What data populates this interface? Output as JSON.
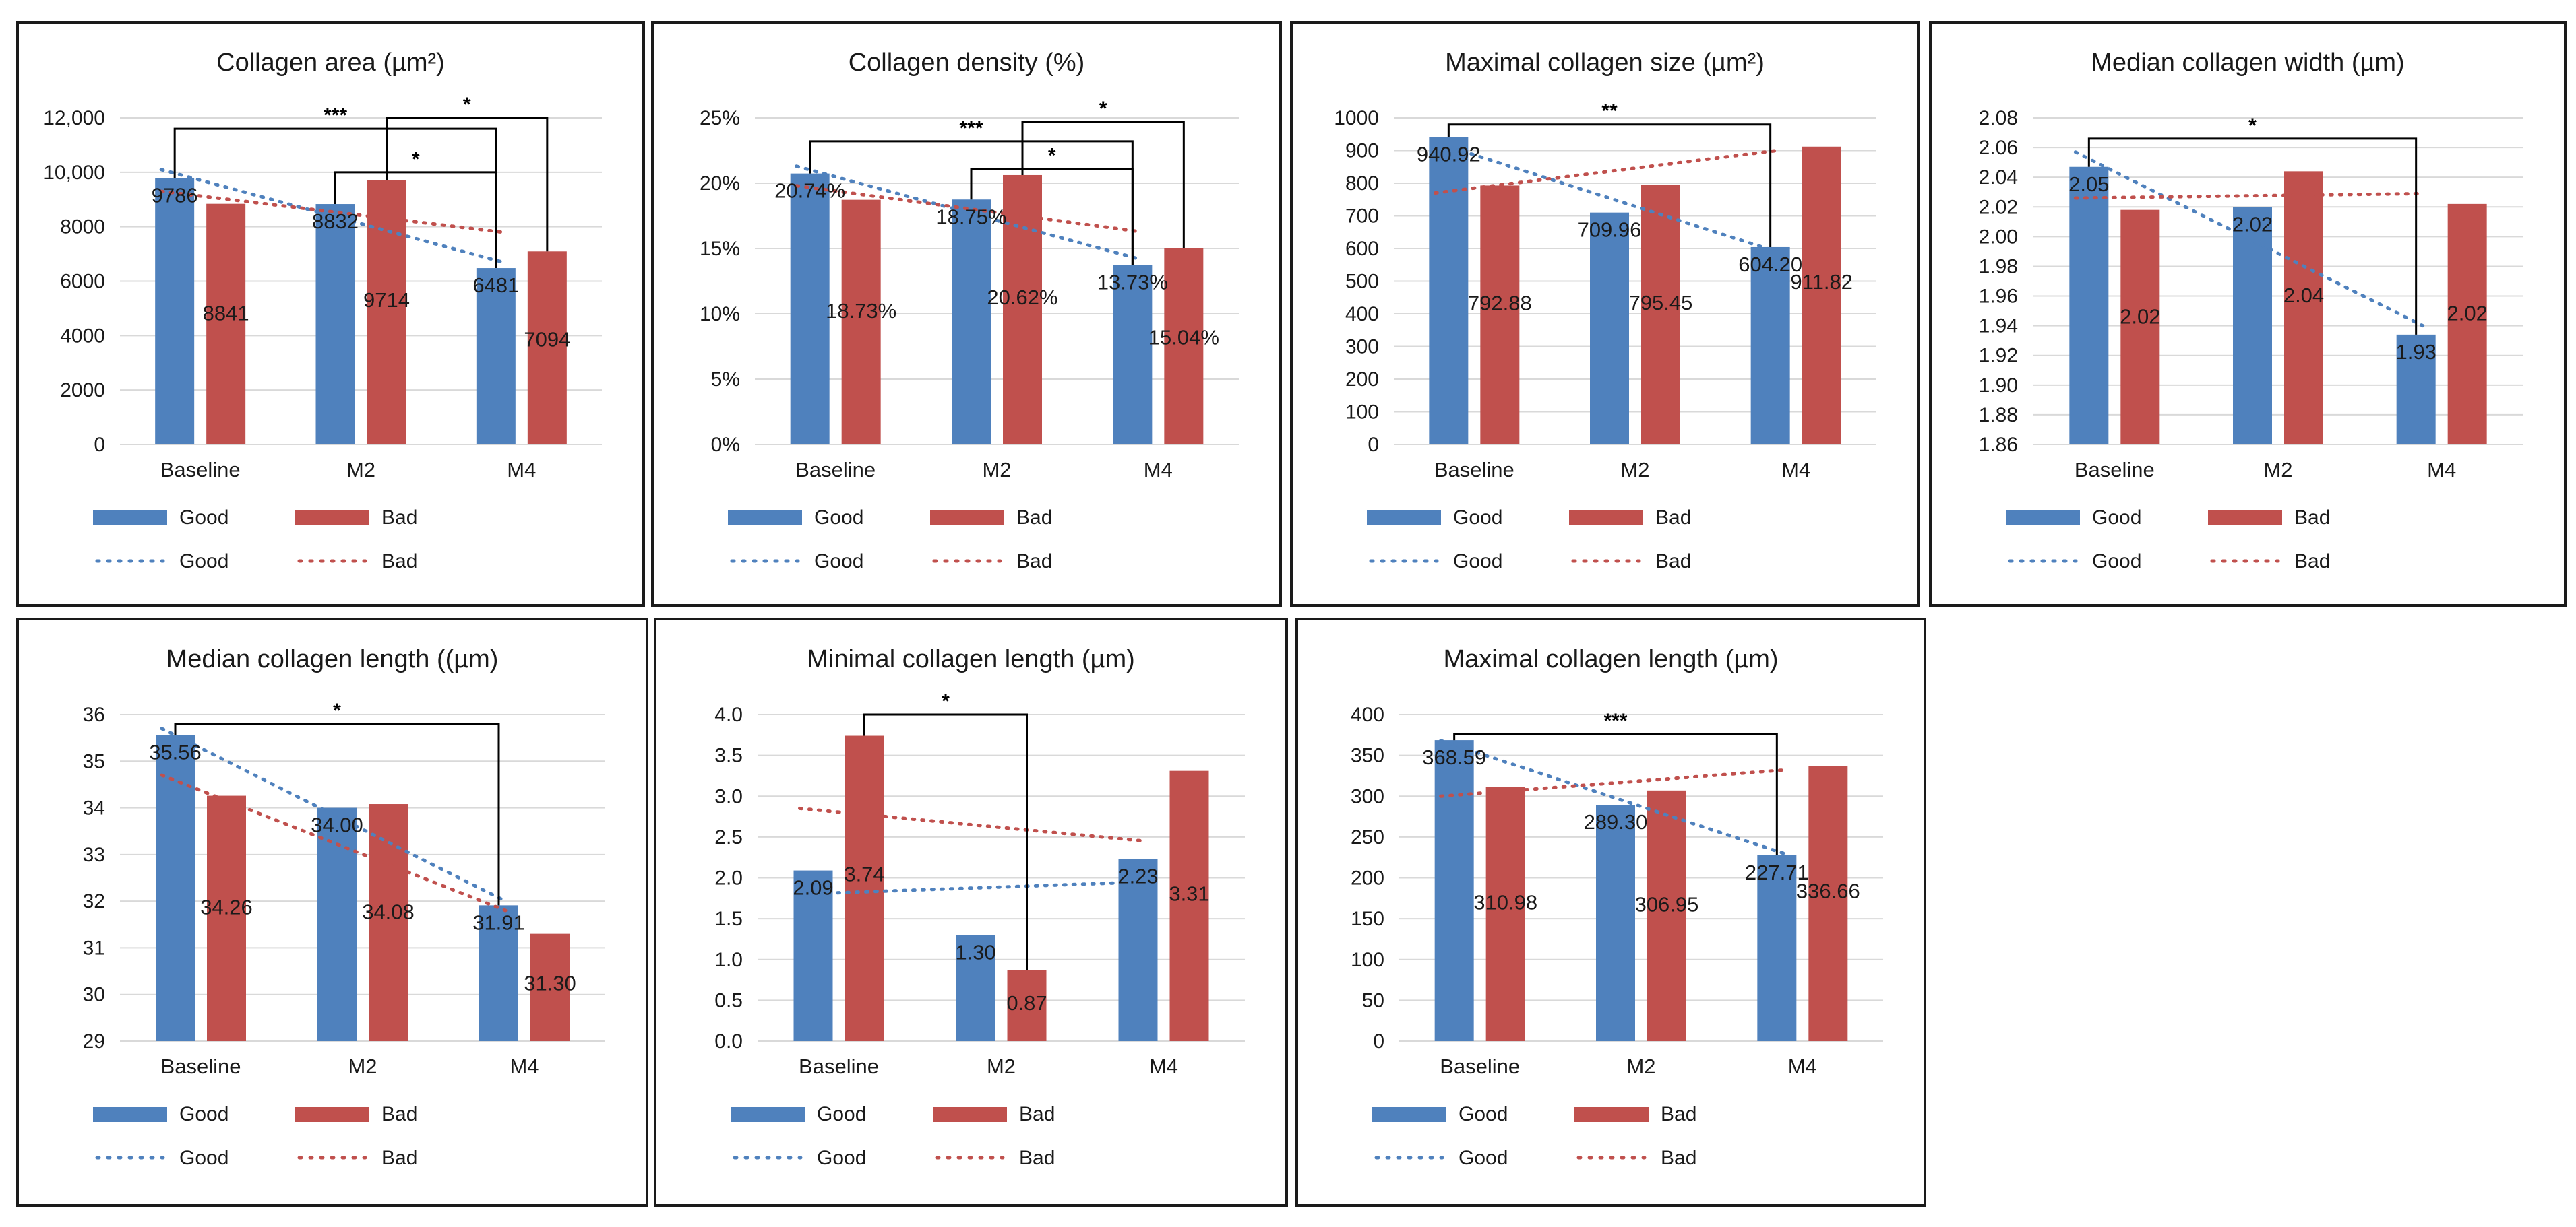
{
  "colors": {
    "good": "#4F81BD",
    "bad": "#C0504D"
  },
  "legend": {
    "good": "Good",
    "bad": "Bad"
  },
  "chart_data": [
    {
      "type": "bar",
      "title": "Collagen area (µm²)",
      "categories": [
        "Baseline",
        "M2",
        "M4"
      ],
      "series": [
        {
          "name": "Good",
          "values": [
            9786,
            8832,
            6481
          ]
        },
        {
          "name": "Bad",
          "values": [
            8841,
            9714,
            7094
          ]
        }
      ],
      "labels": [
        [
          "9786",
          "8832",
          "6481"
        ],
        [
          "8841",
          "9714",
          "7094"
        ]
      ],
      "ylim": [
        0,
        12000
      ],
      "yticks": [
        "0",
        "2000",
        "4000",
        "6000",
        "8000",
        "10,000",
        "12,000"
      ],
      "legend": [
        "Good",
        "Bad",
        "Good",
        "Bad"
      ],
      "trendlines": [
        {
          "name": "Good",
          "from": 10100,
          "to": 6700
        },
        {
          "name": "Bad",
          "from": 9300,
          "to": 7800
        }
      ],
      "significance": [
        {
          "from": [
            0,
            0
          ],
          "to": [
            2,
            0
          ],
          "label": "***",
          "at": 11600
        },
        {
          "from": [
            1,
            0
          ],
          "to": [
            2,
            0
          ],
          "label": "*",
          "at": 10000
        },
        {
          "from": [
            1,
            1
          ],
          "to": [
            2,
            1
          ],
          "label": "*",
          "at": 12000
        }
      ]
    },
    {
      "type": "bar",
      "title": "Collagen density (%)",
      "categories": [
        "Baseline",
        "M2",
        "M4"
      ],
      "series": [
        {
          "name": "Good",
          "values": [
            20.74,
            18.75,
            13.73
          ]
        },
        {
          "name": "Bad",
          "values": [
            18.73,
            20.62,
            15.04
          ]
        }
      ],
      "labels": [
        [
          "20.74%",
          "18.75%",
          "13.73%"
        ],
        [
          "18.73%",
          "20.62%",
          "15.04%"
        ]
      ],
      "ylim": [
        0,
        25
      ],
      "yticks": [
        "0%",
        "5%",
        "10%",
        "15%",
        "20%",
        "25%"
      ],
      "legend": [
        "Good",
        "Bad",
        "Good",
        "Bad"
      ],
      "trendlines": [
        {
          "name": "Good",
          "from": 21.3,
          "to": 14.2
        },
        {
          "name": "Bad",
          "from": 19.8,
          "to": 16.3
        }
      ],
      "significance": [
        {
          "from": [
            0,
            0
          ],
          "to": [
            2,
            0
          ],
          "label": "***",
          "at": 23.2
        },
        {
          "from": [
            1,
            0
          ],
          "to": [
            2,
            0
          ],
          "label": "*",
          "at": 21.1
        },
        {
          "from": [
            1,
            1
          ],
          "to": [
            2,
            1
          ],
          "label": "*",
          "at": 24.7
        }
      ]
    },
    {
      "type": "bar",
      "title": "Maximal collagen size (µm²)",
      "categories": [
        "Baseline",
        "M2",
        "M4"
      ],
      "series": [
        {
          "name": "Good",
          "values": [
            940.92,
            709.96,
            604.2
          ]
        },
        {
          "name": "Bad",
          "values": [
            792.88,
            795.45,
            911.82
          ]
        }
      ],
      "labels": [
        [
          "940.92",
          "709.96",
          "604.20"
        ],
        [
          "792.88",
          "795.45",
          "911.82"
        ]
      ],
      "ylim": [
        0,
        1000
      ],
      "yticks": [
        "0",
        "100",
        "200",
        "300",
        "400",
        "500",
        "600",
        "700",
        "800",
        "900",
        "1000"
      ],
      "legend": [
        "Good",
        "Bad",
        "Good",
        "Bad"
      ],
      "trendlines": [
        {
          "name": "Good",
          "from": 925,
          "to": 590
        },
        {
          "name": "Bad",
          "from": 770,
          "to": 900
        }
      ],
      "significance": [
        {
          "from": [
            0,
            0
          ],
          "to": [
            2,
            0
          ],
          "label": "**",
          "at": 980
        }
      ]
    },
    {
      "type": "bar",
      "title": "Median collagen width (µm)",
      "categories": [
        "Baseline",
        "M2",
        "M4"
      ],
      "series": [
        {
          "name": "Good",
          "values": [
            2.047,
            2.02,
            1.934
          ]
        },
        {
          "name": "Bad",
          "values": [
            2.018,
            2.044,
            2.022
          ]
        }
      ],
      "labels": [
        [
          "2.05",
          "2.02",
          "1.93"
        ],
        [
          "2.02",
          "2.04",
          "2.02"
        ]
      ],
      "ylim": [
        1.86,
        2.08
      ],
      "yticks": [
        "1.86",
        "1.88",
        "1.90",
        "1.92",
        "1.94",
        "1.96",
        "1.98",
        "2.00",
        "2.02",
        "2.04",
        "2.06",
        "2.08"
      ],
      "legend": [
        "Good",
        "Bad",
        "Good",
        "Bad"
      ],
      "trendlines": [
        {
          "name": "Good",
          "from": 2.057,
          "to": 1.94
        },
        {
          "name": "Bad",
          "from": 2.026,
          "to": 2.029
        }
      ],
      "significance": [
        {
          "from": [
            0,
            0
          ],
          "to": [
            2,
            0
          ],
          "label": "*",
          "at": 2.066
        }
      ]
    },
    {
      "type": "bar",
      "title": "Median collagen length ((µm)",
      "categories": [
        "Baseline",
        "M2",
        "M4"
      ],
      "series": [
        {
          "name": "Good",
          "values": [
            35.56,
            34.0,
            31.91
          ]
        },
        {
          "name": "Bad",
          "values": [
            34.26,
            34.08,
            31.3
          ]
        }
      ],
      "labels": [
        [
          "35.56",
          "34.00",
          "31.91"
        ],
        [
          "34.26",
          "34.08",
          "31.30"
        ]
      ],
      "ylim": [
        29,
        36
      ],
      "yticks": [
        "29",
        "30",
        "31",
        "32",
        "33",
        "34",
        "35",
        "36"
      ],
      "legend": [
        "Good",
        "Bad",
        "Good",
        "Bad"
      ],
      "trendlines": [
        {
          "name": "Good",
          "from": 35.7,
          "to": 32.0
        },
        {
          "name": "Bad",
          "from": 34.7,
          "to": 31.8
        }
      ],
      "significance": [
        {
          "from": [
            0,
            0
          ],
          "to": [
            2,
            0
          ],
          "label": "*",
          "at": 35.8
        }
      ]
    },
    {
      "type": "bar",
      "title": "Minimal collagen length (µm)",
      "categories": [
        "Baseline",
        "M2",
        "M4"
      ],
      "series": [
        {
          "name": "Good",
          "values": [
            2.09,
            1.3,
            2.23
          ]
        },
        {
          "name": "Bad",
          "values": [
            3.74,
            0.87,
            3.31
          ]
        }
      ],
      "labels": [
        [
          "2.09",
          "1.30",
          "2.23"
        ],
        [
          "3.74",
          "0.87",
          "3.31"
        ]
      ],
      "ylim": [
        0,
        4
      ],
      "yticks": [
        "0.0",
        "0.5",
        "1.0",
        "1.5",
        "2.0",
        "2.5",
        "3.0",
        "3.5",
        "4.0"
      ],
      "legend": [
        "Good",
        "Bad",
        "Good",
        "Bad"
      ],
      "trendlines": [
        {
          "name": "Good",
          "from": 1.8,
          "to": 1.95
        },
        {
          "name": "Bad",
          "from": 2.85,
          "to": 2.45
        }
      ],
      "significance": [
        {
          "from": [
            0,
            1
          ],
          "to": [
            1,
            1
          ],
          "label": "*",
          "at": 4.0
        }
      ]
    },
    {
      "type": "bar",
      "title": "Maximal collagen length (µm)",
      "categories": [
        "Baseline",
        "M2",
        "M4"
      ],
      "series": [
        {
          "name": "Good",
          "values": [
            368.59,
            289.3,
            227.71
          ]
        },
        {
          "name": "Bad",
          "values": [
            310.98,
            306.95,
            336.66
          ]
        }
      ],
      "labels": [
        [
          "368.59",
          "289.30",
          "227.71"
        ],
        [
          "310.98",
          "306.95",
          "336.66"
        ]
      ],
      "ylim": [
        0,
        400
      ],
      "yticks": [
        "0",
        "50",
        "100",
        "150",
        "200",
        "250",
        "300",
        "350",
        "400"
      ],
      "legend": [
        "Good",
        "Bad",
        "Good",
        "Bad"
      ],
      "trendlines": [
        {
          "name": "Good",
          "from": 368,
          "to": 230
        },
        {
          "name": "Bad",
          "from": 300,
          "to": 332
        }
      ],
      "significance": [
        {
          "from": [
            0,
            0
          ],
          "to": [
            2,
            0
          ],
          "label": "***",
          "at": 376
        }
      ]
    }
  ]
}
